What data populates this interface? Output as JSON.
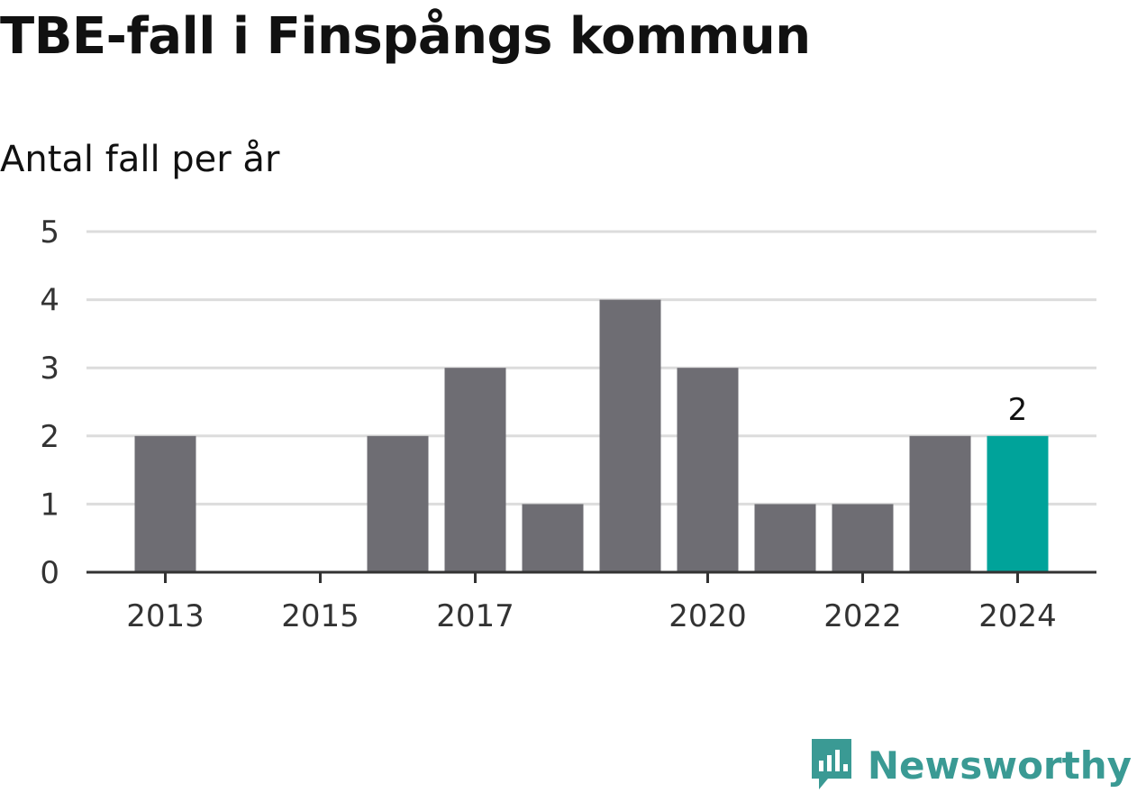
{
  "title": "TBE-fall i Finspångs kommun",
  "subtitle": "Antal fall per år",
  "brand": {
    "name": "Newsworthy",
    "color": "#3a9a94"
  },
  "chart_data": {
    "type": "bar",
    "categories": [
      "2013",
      "2014",
      "2015",
      "2016",
      "2017",
      "2018",
      "2019",
      "2020",
      "2021",
      "2022",
      "2023",
      "2024"
    ],
    "values": [
      2,
      0,
      0,
      2,
      3,
      1,
      4,
      3,
      1,
      1,
      2,
      2
    ],
    "x_tick_labels": [
      "2013",
      "2015",
      "2017",
      "2020",
      "2022",
      "2024"
    ],
    "y_ticks": [
      "0",
      "1",
      "2",
      "3",
      "4",
      "5"
    ],
    "ylim": [
      0,
      5
    ],
    "grid": true,
    "highlight": {
      "category": "2024",
      "label": "2",
      "color": "#00a39a"
    },
    "bar_color": "#6e6d73"
  }
}
